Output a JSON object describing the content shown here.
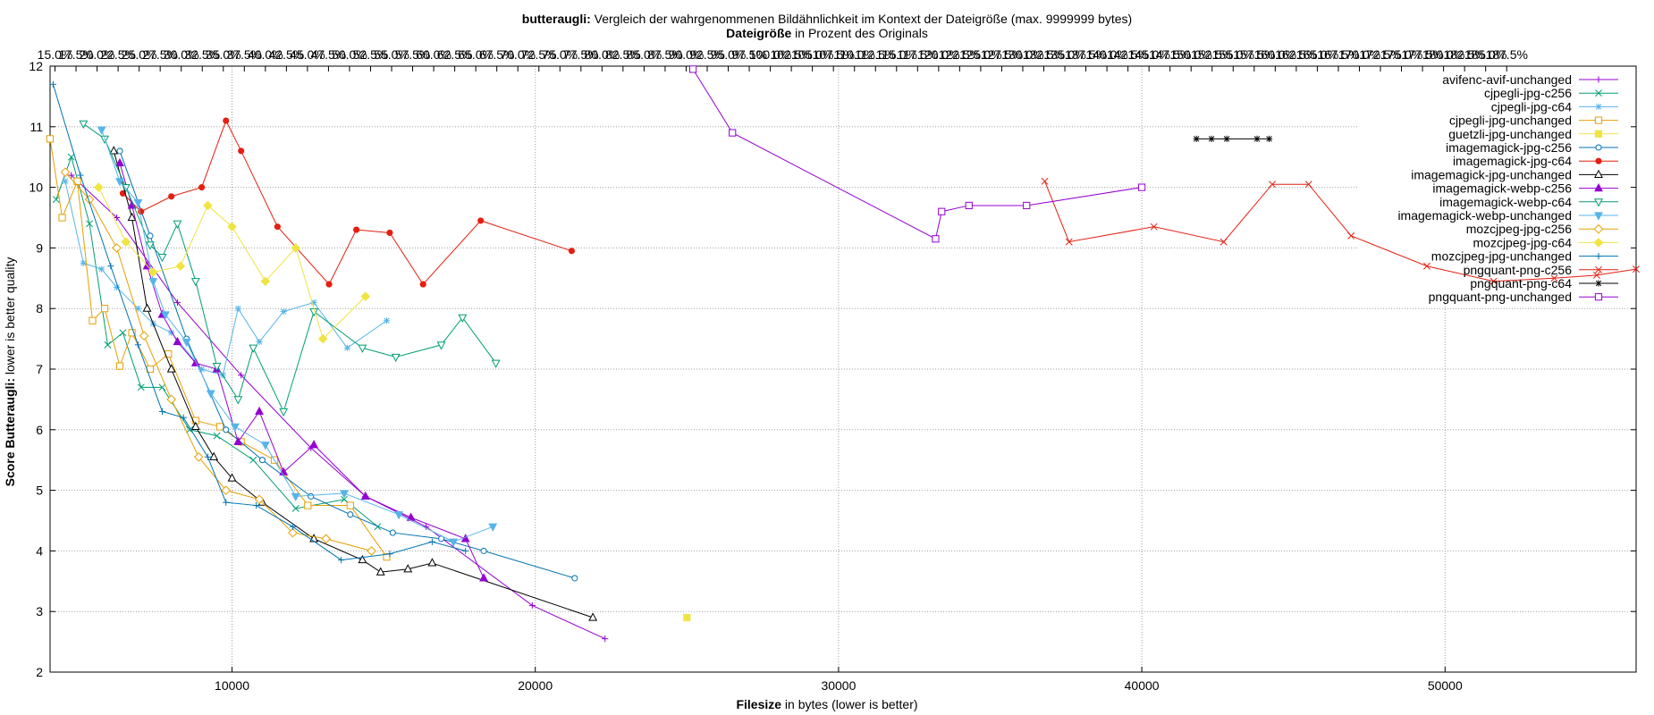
{
  "chart_data": {
    "type": "line",
    "title_bold": "butteraugli:",
    "title_rest": " Vergleich der wahrgenommenen Bildähnlichkeit im Kontext der Dateigröße (max. 9999999 bytes)",
    "subtitle_bold": "Dateigröße",
    "subtitle_rest": " in Prozent des Originals",
    "xlabel_bold": "Filesize",
    "xlabel_rest": " in bytes (lower is better)",
    "ylabel_bold": "Score Butteraugli:",
    "ylabel_rest": " lower is better quality",
    "xlim": [
      4000,
      56300
    ],
    "ylim": [
      2,
      12
    ],
    "grid": true,
    "legend_position": "top-right",
    "x_ticks": [
      10000,
      20000,
      30000,
      40000,
      50000
    ],
    "y_ticks": [
      2,
      3,
      4,
      5,
      6,
      7,
      8,
      9,
      10,
      11,
      12
    ],
    "top_axis": {
      "original_size_bytes": 27750,
      "tick_start": 15.0,
      "tick_step": 2.5,
      "tick_end": 187.5,
      "suffix": "%"
    },
    "series": [
      {
        "name": "avifenc-avif-unchanged",
        "color": "#9400d3",
        "marker": "plus",
        "points": [
          [
            4700,
            10.2
          ],
          [
            6200,
            9.5
          ],
          [
            8200,
            8.1
          ],
          [
            10300,
            6.9
          ],
          [
            12600,
            5.7
          ],
          [
            14400,
            4.9
          ],
          [
            16400,
            4.4
          ],
          [
            19900,
            3.1
          ],
          [
            22300,
            2.55
          ]
        ]
      },
      {
        "name": "cjpegli-jpg-c256",
        "color": "#009e73",
        "marker": "x",
        "points": [
          [
            4200,
            9.8
          ],
          [
            4700,
            10.5
          ],
          [
            5300,
            9.4
          ],
          [
            5900,
            7.4
          ],
          [
            6400,
            7.6
          ],
          [
            7000,
            6.7
          ],
          [
            7700,
            6.7
          ],
          [
            8600,
            6.0
          ],
          [
            9500,
            5.9
          ],
          [
            10700,
            5.5
          ],
          [
            12100,
            4.7
          ],
          [
            13700,
            4.85
          ],
          [
            14800,
            4.4
          ]
        ]
      },
      {
        "name": "cjpegli-jpg-c64",
        "color": "#56b4e9",
        "marker": "asterisk",
        "points": [
          [
            4500,
            10.1
          ],
          [
            5100,
            8.75
          ],
          [
            5700,
            8.65
          ],
          [
            6200,
            8.35
          ],
          [
            6900,
            8.0
          ],
          [
            7400,
            7.75
          ],
          [
            8000,
            7.6
          ],
          [
            9000,
            7.0
          ],
          [
            9700,
            6.9
          ],
          [
            10200,
            8.0
          ],
          [
            10900,
            7.45
          ],
          [
            11700,
            7.95
          ],
          [
            12700,
            8.1
          ],
          [
            13800,
            7.35
          ],
          [
            15100,
            7.8
          ]
        ]
      },
      {
        "name": "cjpegli-jpg-unchanged",
        "color": "#e69f00",
        "marker": "square",
        "points": [
          [
            4000,
            10.8
          ],
          [
            4400,
            9.5
          ],
          [
            4900,
            10.1
          ],
          [
            5400,
            7.8
          ],
          [
            5800,
            8.0
          ],
          [
            6300,
            7.05
          ],
          [
            6700,
            7.6
          ],
          [
            7300,
            7.0
          ],
          [
            7900,
            7.25
          ],
          [
            8800,
            6.15
          ],
          [
            9600,
            6.05
          ],
          [
            10300,
            5.8
          ],
          [
            11400,
            5.5
          ],
          [
            12500,
            4.75
          ],
          [
            13900,
            4.75
          ],
          [
            15100,
            3.9
          ]
        ]
      },
      {
        "name": "guetzli-jpg-unchanged",
        "color": "#f0e442",
        "marker": "filled-square",
        "points": [
          [
            25000,
            2.9
          ]
        ]
      },
      {
        "name": "imagemagick-jpg-c256",
        "color": "#0072b2",
        "marker": "circle",
        "points": [
          [
            6300,
            10.6
          ],
          [
            7300,
            9.2
          ],
          [
            8500,
            7.5
          ],
          [
            9800,
            6.0
          ],
          [
            11000,
            5.5
          ],
          [
            12600,
            4.9
          ],
          [
            13900,
            4.6
          ],
          [
            15300,
            4.3
          ],
          [
            16900,
            4.2
          ],
          [
            18300,
            4.0
          ],
          [
            21300,
            3.55
          ]
        ]
      },
      {
        "name": "imagemagick-jpg-c64",
        "color": "#e51e10",
        "marker": "filled-circle",
        "points": [
          [
            6400,
            9.9
          ],
          [
            7000,
            9.6
          ],
          [
            8000,
            9.85
          ],
          [
            9000,
            10.0
          ],
          [
            9800,
            11.1
          ],
          [
            10300,
            10.6
          ],
          [
            11500,
            9.35
          ],
          [
            13200,
            8.4
          ],
          [
            14100,
            9.3
          ],
          [
            15200,
            9.25
          ],
          [
            16300,
            8.4
          ],
          [
            18200,
            9.45
          ],
          [
            21200,
            8.95
          ]
        ]
      },
      {
        "name": "imagemagick-jpg-unchanged",
        "color": "#000000",
        "marker": "triangle",
        "points": [
          [
            6100,
            10.6
          ],
          [
            6700,
            9.5
          ],
          [
            7200,
            8.0
          ],
          [
            8000,
            7.0
          ],
          [
            8800,
            6.05
          ],
          [
            9400,
            5.55
          ],
          [
            10000,
            5.2
          ],
          [
            11000,
            4.8
          ],
          [
            12700,
            4.2
          ],
          [
            14300,
            3.85
          ],
          [
            14900,
            3.65
          ],
          [
            15800,
            3.7
          ],
          [
            16600,
            3.8
          ],
          [
            21900,
            2.9
          ]
        ]
      },
      {
        "name": "imagemagick-webp-c256",
        "color": "#9400d3",
        "marker": "filled-triangle",
        "points": [
          [
            6300,
            10.4
          ],
          [
            6700,
            9.7
          ],
          [
            7200,
            8.7
          ],
          [
            7700,
            7.9
          ],
          [
            8200,
            7.45
          ],
          [
            8800,
            7.1
          ],
          [
            9500,
            7.0
          ],
          [
            10200,
            5.8
          ],
          [
            10900,
            6.3
          ],
          [
            11700,
            5.3
          ],
          [
            12700,
            5.75
          ],
          [
            14400,
            4.9
          ],
          [
            15900,
            4.55
          ],
          [
            17700,
            4.2
          ],
          [
            18300,
            3.55
          ]
        ]
      },
      {
        "name": "imagemagick-webp-c64",
        "color": "#009e73",
        "marker": "triangle-down",
        "points": [
          [
            5100,
            11.05
          ],
          [
            5800,
            10.8
          ],
          [
            6500,
            10.0
          ],
          [
            7300,
            9.05
          ],
          [
            7700,
            8.85
          ],
          [
            8200,
            9.4
          ],
          [
            8800,
            8.45
          ],
          [
            9500,
            7.05
          ],
          [
            10200,
            6.5
          ],
          [
            10700,
            7.35
          ],
          [
            11700,
            6.3
          ],
          [
            12700,
            7.95
          ],
          [
            14300,
            7.35
          ],
          [
            15400,
            7.2
          ],
          [
            16900,
            7.4
          ],
          [
            17600,
            7.85
          ],
          [
            18700,
            7.1
          ]
        ]
      },
      {
        "name": "imagemagick-webp-unchanged",
        "color": "#56b4e9",
        "marker": "filled-triangle-down",
        "points": [
          [
            5700,
            10.95
          ],
          [
            6300,
            10.1
          ],
          [
            6900,
            9.75
          ],
          [
            7400,
            8.45
          ],
          [
            7800,
            7.9
          ],
          [
            8500,
            7.45
          ],
          [
            9300,
            6.6
          ],
          [
            10100,
            6.05
          ],
          [
            11100,
            5.75
          ],
          [
            12100,
            4.9
          ],
          [
            13700,
            4.95
          ],
          [
            15500,
            4.6
          ],
          [
            17300,
            4.15
          ],
          [
            18600,
            4.4
          ]
        ]
      },
      {
        "name": "mozcjpeg-jpg-c256",
        "color": "#e69f00",
        "marker": "diamond",
        "points": [
          [
            4500,
            10.25
          ],
          [
            5300,
            9.8
          ],
          [
            6200,
            9.0
          ],
          [
            7100,
            7.55
          ],
          [
            8000,
            6.5
          ],
          [
            8900,
            5.55
          ],
          [
            9800,
            5.0
          ],
          [
            10900,
            4.85
          ],
          [
            12000,
            4.3
          ],
          [
            13100,
            4.2
          ],
          [
            14600,
            4.0
          ]
        ]
      },
      {
        "name": "mozcjpeg-jpg-c64",
        "color": "#f0e442",
        "marker": "filled-diamond",
        "points": [
          [
            5600,
            10.0
          ],
          [
            6500,
            9.1
          ],
          [
            7400,
            8.6
          ],
          [
            8300,
            8.7
          ],
          [
            9200,
            9.7
          ],
          [
            10000,
            9.35
          ],
          [
            11100,
            8.45
          ],
          [
            12100,
            9.0
          ],
          [
            13000,
            7.5
          ],
          [
            14400,
            8.2
          ]
        ]
      },
      {
        "name": "mozcjpeg-jpg-unchanged",
        "color": "#0072b2",
        "marker": "plus",
        "points": [
          [
            4100,
            11.7
          ],
          [
            5000,
            10.2
          ],
          [
            6000,
            8.7
          ],
          [
            6900,
            7.4
          ],
          [
            7700,
            6.3
          ],
          [
            8400,
            6.2
          ],
          [
            9200,
            5.55
          ],
          [
            9800,
            4.8
          ],
          [
            10800,
            4.75
          ],
          [
            12000,
            4.4
          ],
          [
            13600,
            3.85
          ],
          [
            15200,
            3.95
          ],
          [
            16600,
            4.15
          ],
          [
            17700,
            4.0
          ]
        ]
      },
      {
        "name": "pngquant-png-c256",
        "color": "#e51e10",
        "marker": "x",
        "points": [
          [
            36800,
            10.1
          ],
          [
            37600,
            9.1
          ],
          [
            40400,
            9.35
          ],
          [
            42700,
            9.1
          ],
          [
            44300,
            10.05
          ],
          [
            45500,
            10.05
          ],
          [
            46900,
            9.2
          ],
          [
            49400,
            8.7
          ],
          [
            51600,
            8.45
          ],
          [
            53600,
            8.5
          ],
          [
            55000,
            8.55
          ],
          [
            56300,
            8.65
          ]
        ]
      },
      {
        "name": "pngquant-png-c64",
        "color": "#000000",
        "marker": "asterisk",
        "points": [
          [
            41800,
            10.8
          ],
          [
            42300,
            10.8
          ],
          [
            42800,
            10.8
          ],
          [
            43800,
            10.8
          ],
          [
            44200,
            10.8
          ]
        ]
      },
      {
        "name": "pngquant-png-unchanged",
        "color": "#9400d3",
        "marker": "square",
        "points": [
          [
            25200,
            11.95
          ],
          [
            26500,
            10.9
          ],
          [
            33200,
            9.15
          ],
          [
            33400,
            9.6
          ],
          [
            34300,
            9.7
          ],
          [
            36200,
            9.7
          ],
          [
            40000,
            10.0
          ]
        ]
      }
    ]
  }
}
